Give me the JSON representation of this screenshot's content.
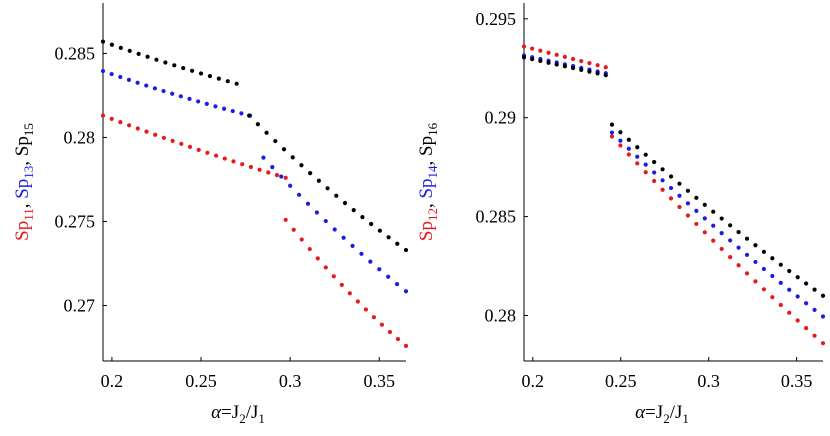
{
  "colors": {
    "red": "#e8191c",
    "blue": "#1c1ce8",
    "black": "#000000"
  },
  "chart_data": [
    {
      "type": "scatter",
      "id": "left",
      "xlabel": "α=J2/J1",
      "ylabel": "Sp11, Sp13, Sp15",
      "xlim": [
        0.195,
        0.365
      ],
      "ylim": [
        0.2667,
        0.288
      ],
      "xticks": [
        0.2,
        0.25,
        0.3,
        0.35
      ],
      "xtick_labels": [
        "0.2",
        "0.25",
        "0.3",
        "0.35"
      ],
      "yticks": [
        0.27,
        0.275,
        0.28,
        0.285
      ],
      "ytick_labels": [
        "0.27",
        "0.275",
        "0.28",
        "0.285"
      ],
      "series": [
        {
          "name": "Sp11",
          "color": "red",
          "segments": [
            {
              "x0": 0.195,
              "x1": 0.2975,
              "y0": 0.2813,
              "y1": 0.2776,
              "n": 22,
              "curve": -0.0004
            },
            {
              "x0": 0.2975,
              "x1": 0.365,
              "y0": 0.2751,
              "y1": 0.2676,
              "n": 16,
              "curve": -0.0015
            }
          ]
        },
        {
          "name": "Sp13",
          "color": "blue",
          "segments": [
            {
              "x0": 0.195,
              "x1": 0.2775,
              "y0": 0.28395,
              "y1": 0.2813,
              "n": 18,
              "curve": -0.0004
            },
            {
              "x0": 0.285,
              "x1": 0.365,
              "y0": 0.2788,
              "y1": 0.27085,
              "n": 17,
              "curve": -0.0012
            }
          ]
        },
        {
          "name": "Sp15",
          "color": "black",
          "segments": [
            {
              "x0": 0.195,
              "x1": 0.27,
              "y0": 0.2857,
              "y1": 0.2832,
              "n": 16,
              "curve": -0.0003
            },
            {
              "x0": 0.277,
              "x1": 0.365,
              "y0": 0.2813,
              "y1": 0.2733,
              "n": 19,
              "curve": -0.0013
            }
          ]
        }
      ]
    },
    {
      "type": "scatter",
      "id": "right",
      "xlabel": "α=J2/J1",
      "ylabel": "Sp12, Sp14, Sp16",
      "xlim": [
        0.195,
        0.365
      ],
      "ylim": [
        0.2777,
        0.2958
      ],
      "xticks": [
        0.2,
        0.25,
        0.3,
        0.35
      ],
      "xtick_labels": [
        "0.2",
        "0.25",
        "0.3",
        "0.35"
      ],
      "yticks": [
        0.28,
        0.285,
        0.29,
        0.295
      ],
      "ytick_labels": [
        "0.28",
        "0.285",
        "0.29",
        "0.295"
      ],
      "series": [
        {
          "name": "Sp12",
          "color": "red",
          "segments": [
            {
              "x0": 0.195,
              "x1": 0.2415,
              "y0": 0.2936,
              "y1": 0.29255,
              "n": 11,
              "curve": 0
            },
            {
              "x0": 0.245,
              "x1": 0.365,
              "y0": 0.28905,
              "y1": 0.2786,
              "n": 26,
              "curve": -0.001
            }
          ]
        },
        {
          "name": "Sp14",
          "color": "blue",
          "segments": [
            {
              "x0": 0.195,
              "x1": 0.2415,
              "y0": 0.29315,
              "y1": 0.29225,
              "n": 11,
              "curve": 0
            },
            {
              "x0": 0.245,
              "x1": 0.365,
              "y0": 0.28925,
              "y1": 0.27995,
              "n": 26,
              "curve": -0.001
            }
          ]
        },
        {
          "name": "Sp16",
          "color": "black",
          "segments": [
            {
              "x0": 0.195,
              "x1": 0.2415,
              "y0": 0.29305,
              "y1": 0.29215,
              "n": 11,
              "curve": 0
            },
            {
              "x0": 0.245,
              "x1": 0.365,
              "y0": 0.28965,
              "y1": 0.281,
              "n": 26,
              "curve": -0.001
            }
          ]
        }
      ]
    }
  ]
}
